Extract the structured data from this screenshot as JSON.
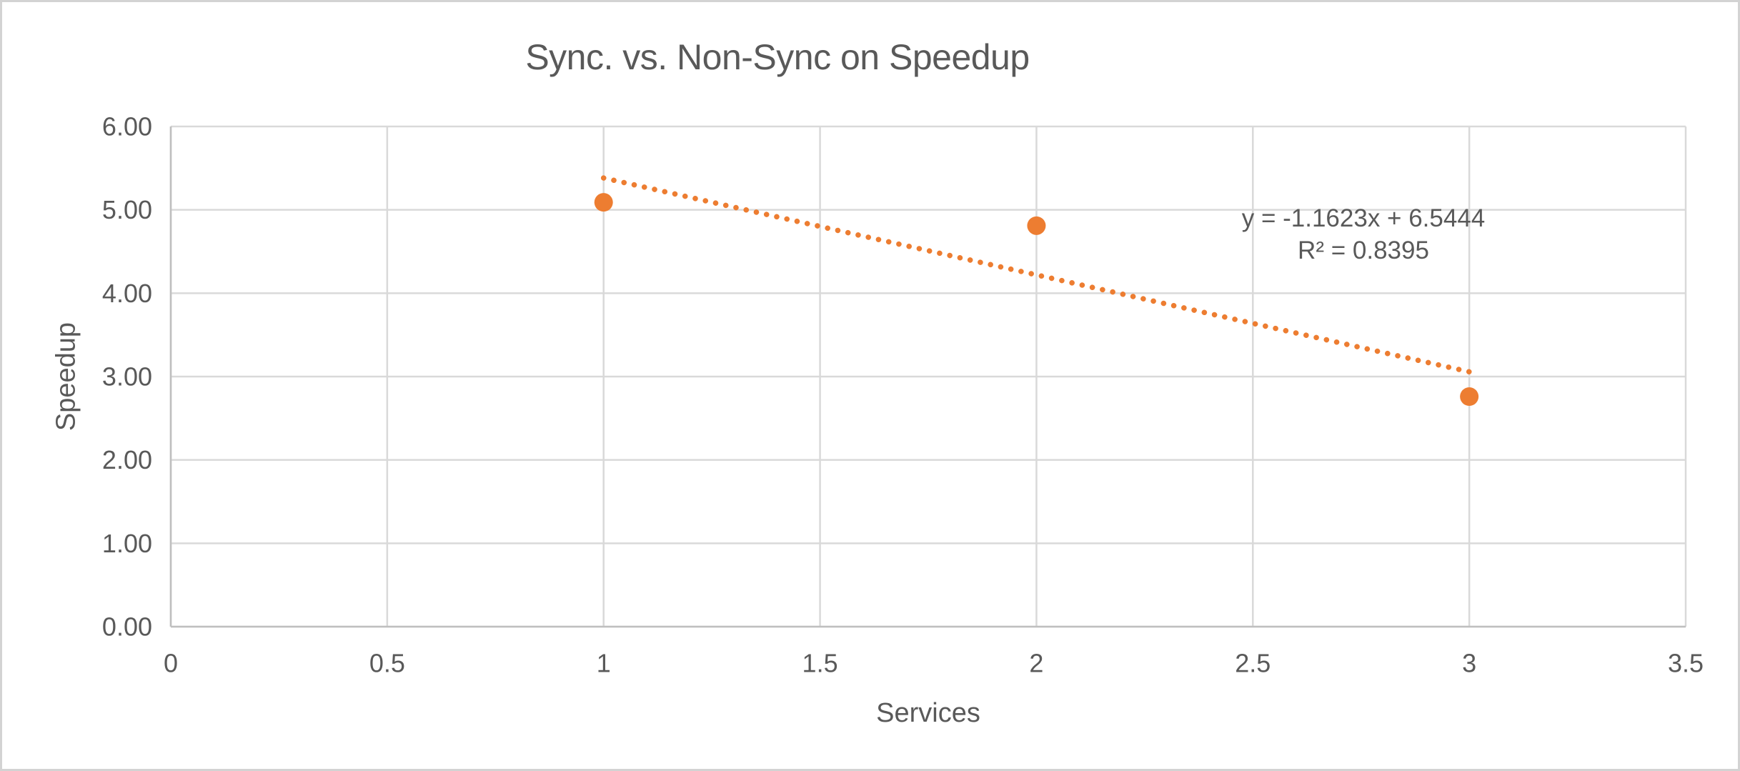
{
  "chart": {
    "title": "Sync. vs. Non-Sync on Speedup",
    "axes": {
      "x_title": "Services",
      "y_title": "Speedup"
    },
    "annotation": {
      "equation": "y = -1.1623x + 6.5444",
      "r_squared": "R² = 0.8395"
    }
  },
  "chart_data": {
    "type": "scatter",
    "title": "Sync. vs. Non-Sync on Speedup",
    "xlabel": "Services",
    "ylabel": "Speedup",
    "series": [
      {
        "name": "Speedup",
        "points": [
          {
            "x": 1,
            "y": 5.09
          },
          {
            "x": 2,
            "y": 4.81
          },
          {
            "x": 3,
            "y": 2.76
          }
        ]
      }
    ],
    "trendline": {
      "kind": "linear",
      "slope": -1.1623,
      "intercept": 6.5444,
      "r2": 0.8395,
      "x_range": [
        1,
        3
      ],
      "line_style": "dotted",
      "equation_label": "y = -1.1623x + 6.5444",
      "r2_label": "R² = 0.8395"
    },
    "xlim": [
      0,
      3.5
    ],
    "ylim": [
      0,
      6
    ],
    "x_ticks": [
      "0",
      "0.5",
      "1",
      "1.5",
      "2",
      "2.5",
      "3",
      "3.5"
    ],
    "y_ticks": [
      "0.00",
      "1.00",
      "2.00",
      "3.00",
      "4.00",
      "5.00",
      "6.00"
    ],
    "grid": true,
    "legend": "none",
    "colors": {
      "marker": "#ED7D31",
      "trendline": "#ED7D31",
      "gridline": "#D9D9D9",
      "axis_line": "#BFBFBF",
      "text": "#595959",
      "background": "#FFFFFF",
      "frame_border": "#D3D3D3"
    }
  }
}
